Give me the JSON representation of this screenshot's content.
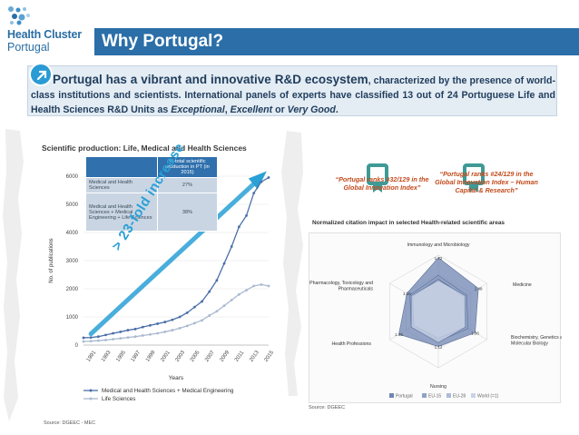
{
  "logo": {
    "line1": "Health Cluster",
    "line2": "Portugal"
  },
  "title": "Why Portugal?",
  "intro": {
    "lead": "Portugal has a vibrant and innovative R&D ecosystem",
    "text1": ", characterized by the presence of world-class institutions and scientists. International panels of experts have classified 13 out of 24 Portuguese Life and Health Sciences R&D Units as ",
    "em1": "Exceptional",
    "sep1": ", ",
    "em2": "Excellent",
    "sep2": " or ",
    "em3": "Very Good",
    "end": "."
  },
  "left_chart_title": "Scientific production: Life, Medical and Health Sciences",
  "share_table": {
    "header": "% total scientific production in PT (in 2015)",
    "rows": [
      {
        "label": "Medical and Health Sciences",
        "value": "27%"
      },
      {
        "label": "Medical and Health Sciences + Medical Engineering + Life Sciences",
        "value": "38%"
      }
    ]
  },
  "arrow_label": "> 23-fold increase",
  "source_left": "Source: DGEEC - MEC",
  "source_right": "Source: DGEEC",
  "rank1": "“Portugal ranks #32/129 in the Global Innovation Index”",
  "rank2": "“Portugal ranks #24/129 in the Global Innovation Index – Human Capital & Research”",
  "radar_title": "Normalized citation impact in selected Health-related scientific areas",
  "chart_data": [
    {
      "type": "line",
      "title": "Scientific production: Life, Medical and Health Sciences",
      "xlabel": "Years",
      "ylabel": "No. of publications",
      "ylim": [
        0,
        6000
      ],
      "yticks": [
        0,
        1000,
        2000,
        3000,
        4000,
        5000,
        6000
      ],
      "xticks": [
        "1991",
        "1993",
        "1995",
        "1997",
        "1999",
        "2001",
        "2003",
        "2005",
        "2007",
        "2009",
        "2011",
        "2013",
        "2015"
      ],
      "x": [
        1990,
        1991,
        1992,
        1993,
        1994,
        1995,
        1996,
        1997,
        1998,
        1999,
        2000,
        2001,
        2002,
        2003,
        2004,
        2005,
        2006,
        2007,
        2008,
        2009,
        2010,
        2011,
        2012,
        2013,
        2014,
        2015
      ],
      "series": [
        {
          "name": "Medical and Health Sciences + Medical Engineering",
          "color": "#4a6fa8",
          "values": [
            260,
            270,
            300,
            360,
            420,
            470,
            530,
            570,
            640,
            700,
            760,
            820,
            900,
            1000,
            1150,
            1350,
            1550,
            1900,
            2300,
            2900,
            3500,
            4200,
            4600,
            5400,
            5800,
            5950
          ]
        },
        {
          "name": "Life Sciences",
          "color": "#a9bad0",
          "values": [
            130,
            140,
            160,
            180,
            210,
            240,
            270,
            300,
            340,
            380,
            420,
            470,
            530,
            600,
            680,
            780,
            880,
            1050,
            1200,
            1400,
            1600,
            1800,
            1950,
            2100,
            2150,
            2100
          ]
        }
      ],
      "legend": "bottom"
    },
    {
      "type": "radar",
      "title": "Normalized citation impact in selected Health-related scientific areas",
      "axes": [
        "Immunology and Microbiology",
        "Medicine",
        "Biochemistry, Genetics and Molecular Biology",
        "Nursing",
        "Health Professions",
        "Pharmacology, Toxicology and Pharmaceuticals"
      ],
      "axis_values": [
        "1.72",
        "1.48",
        "1.36",
        "1.12",
        "1.46",
        "1.16"
      ],
      "series": [
        {
          "name": "Portugal",
          "color": "#6f86b3",
          "values": [
            1.72,
            1.48,
            1.36,
            1.12,
            1.46,
            1.16
          ]
        },
        {
          "name": "EU-15",
          "color": "#8fa2c6",
          "values": [
            1.15,
            1.05,
            1.1,
            0.95,
            1.0,
            1.05
          ]
        },
        {
          "name": "EU-28",
          "color": "#aebcd6",
          "values": [
            1.05,
            0.95,
            1.0,
            0.85,
            0.9,
            0.95
          ]
        },
        {
          "name": "World (=1)",
          "color": "#c9d3e5",
          "values": [
            1,
            1,
            1,
            1,
            1,
            1
          ]
        }
      ],
      "legend": "bottom"
    }
  ]
}
